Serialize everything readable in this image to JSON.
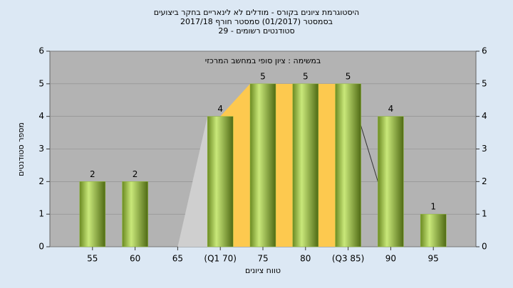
{
  "chart_data": {
    "type": "bar",
    "title": "היסטוגרמת ציונים בקורס - מודלים לא לינאריים בחקר ביצועים",
    "subtitle": "בסמסטר  (01/2017)  סמסטר חורף 2017/18",
    "caption": "סטודנטים רשומים - 29",
    "annotation": "במשימה : ציון סופי במחשב המרכזי",
    "x_label": "טווח ציונים",
    "y_label": "מספר סטודנטים",
    "categories": [
      "55",
      "60",
      "65",
      "(Q1 70)",
      "75",
      "80",
      "(Q3 85)",
      "90",
      "95"
    ],
    "values": [
      2,
      2,
      0,
      4,
      5,
      5,
      5,
      4,
      1
    ],
    "color": "#8fb93a",
    "ylim": [
      0,
      6
    ],
    "yticks": [
      0,
      1,
      2,
      3,
      4,
      5,
      6
    ],
    "y2lim": [
      0,
      6
    ],
    "y2ticks": [
      0,
      1,
      2,
      3,
      4,
      5,
      6
    ],
    "grid": true
  }
}
